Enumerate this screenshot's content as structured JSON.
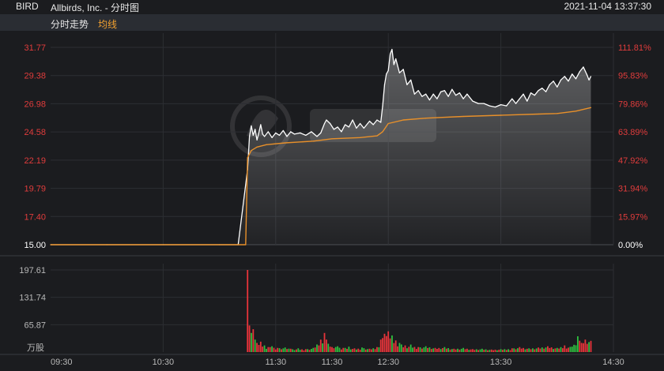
{
  "header": {
    "ticker": "BIRD",
    "name": "Allbirds, Inc. - 分时图",
    "timestamp": "2021-11-04 13:37:30",
    "mode_label": "分时走势",
    "avg_label": "均线"
  },
  "colors": {
    "price_line": "#ffffff",
    "avg_line": "#e8902a",
    "up": "#e8343a",
    "down": "#2fbf3f",
    "axis_red": "#e03c3c",
    "axis_white": "#ffffff",
    "axis_gray": "#b8b8b8"
  },
  "chart_data": [
    {
      "type": "line",
      "ylim": [
        15.0,
        31.77
      ],
      "grid": true,
      "base_price": 15.0,
      "left_ticks": [
        "31.77",
        "29.38",
        "26.98",
        "24.58",
        "22.19",
        "19.79",
        "17.40",
        "15.00"
      ],
      "right_ticks": [
        "111.81%",
        "95.83%",
        "79.86%",
        "63.89%",
        "47.92%",
        "31.94%",
        "15.97%",
        "0.00%"
      ],
      "x_ticks": [
        "09:30",
        "10:30",
        "11:30",
        "11:30",
        "12:30",
        "13:30",
        "14:30"
      ],
      "series": [
        {
          "key": "price",
          "points": [
            [
              "09:30",
              15.0
            ],
            [
              "10:00",
              15.0
            ],
            [
              "10:30",
              15.0
            ],
            [
              "11:00",
              15.0
            ],
            [
              "11:10",
              15.0
            ],
            [
              "11:15",
              21.4
            ],
            [
              "11:16",
              24.2
            ],
            [
              "11:17",
              25.1
            ],
            [
              "11:18",
              24.3
            ],
            [
              "11:19",
              24.8
            ],
            [
              "11:20",
              23.9
            ],
            [
              "11:21",
              24.5
            ],
            [
              "11:22",
              25.2
            ],
            [
              "11:23",
              24.4
            ],
            [
              "11:24",
              24.2
            ],
            [
              "11:26",
              24.6
            ],
            [
              "11:28",
              24.1
            ],
            [
              "11:30",
              24.5
            ],
            [
              "11:32",
              24.3
            ],
            [
              "11:34",
              24.7
            ],
            [
              "11:36",
              24.2
            ],
            [
              "11:38",
              24.6
            ],
            [
              "11:40",
              24.4
            ],
            [
              "11:43",
              24.5
            ],
            [
              "11:46",
              24.3
            ],
            [
              "11:49",
              24.6
            ],
            [
              "11:52",
              24.2
            ],
            [
              "11:54",
              24.5
            ],
            [
              "11:56",
              25.3
            ],
            [
              "11:57",
              25.6
            ],
            [
              "11:59",
              25.3
            ],
            [
              "12:01",
              24.8
            ],
            [
              "12:03",
              25.0
            ],
            [
              "12:05",
              24.6
            ],
            [
              "12:07",
              25.2
            ],
            [
              "12:09",
              25.0
            ],
            [
              "12:11",
              25.6
            ],
            [
              "12:13",
              24.9
            ],
            [
              "12:15",
              25.3
            ],
            [
              "12:17",
              24.9
            ],
            [
              "12:19",
              25.3
            ],
            [
              "12:20",
              25.5
            ],
            [
              "12:22",
              25.2
            ],
            [
              "12:24",
              25.6
            ],
            [
              "12:26",
              25.4
            ],
            [
              "12:27",
              26.8
            ],
            [
              "12:28",
              28.6
            ],
            [
              "12:29",
              29.5
            ],
            [
              "12:30",
              29.8
            ],
            [
              "12:31",
              31.2
            ],
            [
              "12:32",
              31.6
            ],
            [
              "12:33",
              30.3
            ],
            [
              "12:34",
              30.8
            ],
            [
              "12:36",
              29.6
            ],
            [
              "12:38",
              29.9
            ],
            [
              "12:40",
              28.6
            ],
            [
              "12:42",
              29.0
            ],
            [
              "12:44",
              27.8
            ],
            [
              "12:46",
              28.1
            ],
            [
              "12:48",
              27.6
            ],
            [
              "12:50",
              27.8
            ],
            [
              "12:52",
              27.3
            ],
            [
              "12:54",
              27.8
            ],
            [
              "12:56",
              27.4
            ],
            [
              "12:58",
              28.0
            ],
            [
              "13:00",
              28.1
            ],
            [
              "13:02",
              27.6
            ],
            [
              "13:04",
              28.2
            ],
            [
              "13:06",
              27.7
            ],
            [
              "13:08",
              27.9
            ],
            [
              "13:10",
              27.4
            ],
            [
              "13:12",
              27.8
            ],
            [
              "13:15",
              27.2
            ],
            [
              "13:18",
              27.0
            ],
            [
              "13:21",
              27.0
            ],
            [
              "13:24",
              26.8
            ],
            [
              "13:27",
              26.7
            ],
            [
              "13:30",
              26.9
            ],
            [
              "13:33",
              26.8
            ],
            [
              "13:36",
              27.4
            ],
            [
              "13:38",
              27.0
            ],
            [
              "13:40",
              27.4
            ],
            [
              "13:42",
              27.8
            ],
            [
              "13:44",
              27.2
            ],
            [
              "13:46",
              27.9
            ],
            [
              "13:48",
              27.7
            ],
            [
              "13:50",
              28.1
            ],
            [
              "13:52",
              28.3
            ],
            [
              "13:54",
              28.0
            ],
            [
              "13:56",
              28.6
            ],
            [
              "13:58",
              28.9
            ],
            [
              "14:00",
              28.4
            ],
            [
              "14:02",
              29.0
            ],
            [
              "14:04",
              29.3
            ],
            [
              "14:06",
              28.9
            ],
            [
              "14:08",
              29.5
            ],
            [
              "14:10",
              29.1
            ],
            [
              "14:12",
              29.7
            ],
            [
              "14:14",
              30.1
            ],
            [
              "14:16",
              29.4
            ],
            [
              "14:17",
              29.0
            ],
            [
              "14:18",
              29.3
            ]
          ]
        },
        {
          "key": "average",
          "points": [
            [
              "09:30",
              15.0
            ],
            [
              "11:10",
              15.0
            ],
            [
              "11:14",
              15.0
            ],
            [
              "11:15",
              22.4
            ],
            [
              "11:17",
              23.0
            ],
            [
              "11:20",
              23.3
            ],
            [
              "11:25",
              23.5
            ],
            [
              "11:35",
              23.65
            ],
            [
              "11:50",
              23.8
            ],
            [
              "12:00",
              24.0
            ],
            [
              "12:15",
              24.1
            ],
            [
              "12:24",
              24.25
            ],
            [
              "12:27",
              24.6
            ],
            [
              "12:30",
              25.3
            ],
            [
              "12:38",
              25.6
            ],
            [
              "12:50",
              25.75
            ],
            [
              "13:10",
              25.9
            ],
            [
              "13:30",
              26.0
            ],
            [
              "13:50",
              26.1
            ],
            [
              "14:00",
              26.15
            ],
            [
              "14:10",
              26.35
            ],
            [
              "14:18",
              26.65
            ]
          ]
        }
      ]
    },
    {
      "type": "bar",
      "unit": "万股",
      "ylim": [
        0,
        197.61
      ],
      "y_ticks": [
        "197.61",
        "131.74",
        "65.87"
      ],
      "volume_rise_pattern": [
        1,
        1,
        0,
        1,
        0,
        1,
        1,
        0,
        1,
        0,
        0,
        1,
        1,
        0,
        1
      ],
      "volume_points": [
        [
          "11:15",
          197.61,
          1
        ],
        [
          "11:16",
          64.0,
          1
        ],
        [
          "11:17",
          46.0,
          0
        ],
        [
          "11:18",
          55.0,
          1
        ],
        [
          "11:19",
          30.0,
          0
        ],
        [
          "11:20",
          22.0,
          1
        ],
        [
          "11:22",
          25.0,
          1
        ],
        [
          "11:24",
          16.0,
          0
        ],
        [
          "11:26",
          12.0,
          1
        ],
        [
          "11:28",
          14.0,
          0
        ],
        [
          "11:31",
          10.0,
          1
        ],
        [
          "11:35",
          11.0,
          0
        ],
        [
          "11:38",
          8.0,
          1
        ],
        [
          "11:42",
          9.0,
          0
        ],
        [
          "11:46",
          7.0,
          1
        ],
        [
          "11:50",
          10.0,
          0
        ],
        [
          "11:54",
          30.0,
          1
        ],
        [
          "11:56",
          46.0,
          1
        ],
        [
          "11:58",
          20.0,
          0
        ],
        [
          "12:00",
          12.0,
          1
        ],
        [
          "12:03",
          14.0,
          0
        ],
        [
          "12:06",
          10.0,
          1
        ],
        [
          "12:09",
          13.0,
          0
        ],
        [
          "12:12",
          9.0,
          1
        ],
        [
          "12:16",
          11.0,
          0
        ],
        [
          "12:20",
          8.0,
          1
        ],
        [
          "12:24",
          12.0,
          1
        ],
        [
          "12:26",
          30.0,
          1
        ],
        [
          "12:28",
          44.0,
          1
        ],
        [
          "12:30",
          50.0,
          1
        ],
        [
          "12:32",
          40.0,
          0
        ],
        [
          "12:34",
          28.0,
          1
        ],
        [
          "12:36",
          22.0,
          0
        ],
        [
          "12:39",
          16.0,
          1
        ],
        [
          "12:42",
          18.0,
          0
        ],
        [
          "12:46",
          12.0,
          1
        ],
        [
          "12:50",
          14.0,
          0
        ],
        [
          "12:55",
          10.0,
          1
        ],
        [
          "13:00",
          12.0,
          0
        ],
        [
          "13:05",
          8.0,
          1
        ],
        [
          "13:10",
          10.0,
          0
        ],
        [
          "13:15",
          7.0,
          1
        ],
        [
          "13:20",
          8.0,
          0
        ],
        [
          "13:25",
          6.0,
          1
        ],
        [
          "13:30",
          7.0,
          0
        ],
        [
          "13:36",
          9.0,
          1
        ],
        [
          "13:40",
          12.0,
          1
        ],
        [
          "13:45",
          9.0,
          0
        ],
        [
          "13:50",
          11.0,
          1
        ],
        [
          "13:55",
          14.0,
          1
        ],
        [
          "14:00",
          10.0,
          0
        ],
        [
          "14:04",
          16.0,
          1
        ],
        [
          "14:08",
          13.0,
          0
        ],
        [
          "14:11",
          38.0,
          0
        ],
        [
          "14:13",
          22.0,
          1
        ],
        [
          "14:15",
          30.0,
          1
        ],
        [
          "14:17",
          24.0,
          0
        ],
        [
          "14:18",
          27.0,
          1
        ]
      ]
    }
  ]
}
